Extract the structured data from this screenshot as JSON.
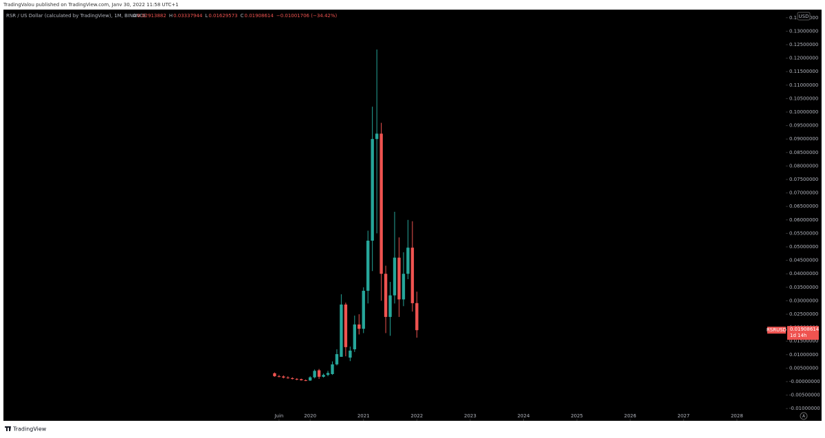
{
  "publisher": "TradingValou published on TradingView.com, Janv 30, 2022 11:58 UTC+1",
  "footer_brand": "TradingView",
  "chart_data": {
    "type": "candlestick",
    "title": "RSR / US Dollar (calculated by TradingView), 1M, BINANCE",
    "ohlc_letters": [
      "O",
      "H",
      "L",
      "C"
    ],
    "change": "−0.01001706 (−34.42%)",
    "symbol": "RSRUSD",
    "countdown": "1d 14h",
    "currency": "USD",
    "up_color": "#26a69a",
    "down_color": "#ef5350",
    "x": [
      "2019-05",
      "2019-06",
      "2019-07",
      "2019-08",
      "2019-09",
      "2019-10",
      "2019-11",
      "2019-12",
      "2020-01",
      "2020-02",
      "2020-03",
      "2020-04",
      "2020-05",
      "2020-06",
      "2020-07",
      "2020-08",
      "2020-09",
      "2020-10",
      "2020-11",
      "2020-12",
      "2021-01",
      "2021-02",
      "2021-03",
      "2021-04",
      "2021-05",
      "2021-06",
      "2021-07",
      "2021-08",
      "2021-09",
      "2021-10",
      "2021-11",
      "2021-12",
      "2022-01"
    ],
    "open": [
      0.0031,
      0.002,
      0.0019,
      0.0015,
      0.0013,
      0.001,
      0.0009,
      0.0005,
      0.0004,
      0.0016,
      0.0042,
      0.0018,
      0.0025,
      0.0028,
      0.0064,
      0.0092,
      0.0286,
      0.0089,
      0.012,
      0.0212,
      0.0196,
      0.0337,
      0.0523,
      0.09,
      0.092,
      0.04,
      0.024,
      0.032,
      0.046,
      0.0305,
      0.04,
      0.0497,
      0.02913882
    ],
    "high": [
      0.0034,
      0.0025,
      0.0023,
      0.002,
      0.0016,
      0.0013,
      0.0011,
      0.0008,
      0.002,
      0.0045,
      0.0047,
      0.003,
      0.004,
      0.0075,
      0.012,
      0.0324,
      0.0293,
      0.013,
      0.0245,
      0.025,
      0.035,
      0.056,
      0.102,
      0.1232,
      0.096,
      0.043,
      0.037,
      0.063,
      0.0535,
      0.048,
      0.06,
      0.0595,
      0.03337944
    ],
    "low": [
      0.0018,
      0.0016,
      0.0012,
      0.0011,
      0.0008,
      0.0005,
      0.0004,
      0.0002,
      0.0003,
      0.0012,
      0.001,
      0.0015,
      0.002,
      0.0025,
      0.006,
      0.0092,
      0.0094,
      0.0076,
      0.011,
      0.0175,
      0.018,
      0.029,
      0.041,
      0.055,
      0.03,
      0.018,
      0.017,
      0.029,
      0.024,
      0.028,
      0.038,
      0.026,
      0.01629573
    ],
    "close": [
      0.002,
      0.0019,
      0.0015,
      0.0013,
      0.001,
      0.0009,
      0.0005,
      0.0004,
      0.0016,
      0.004,
      0.0018,
      0.0025,
      0.0032,
      0.0064,
      0.0102,
      0.0286,
      0.0128,
      0.0115,
      0.0212,
      0.0196,
      0.0337,
      0.0523,
      0.09,
      0.092,
      0.04,
      0.024,
      0.032,
      0.046,
      0.0305,
      0.04,
      0.0497,
      0.0291032,
      0.01908614
    ],
    "xlim": [
      "2014-04",
      "2028-12"
    ],
    "xticks": [
      {
        "value": "2019-06",
        "label": "Juin"
      },
      {
        "value": "2020-01",
        "label": "2020"
      },
      {
        "value": "2021-01",
        "label": "2021"
      },
      {
        "value": "2022-01",
        "label": "2022"
      },
      {
        "value": "2023-01",
        "label": "2023"
      },
      {
        "value": "2024-01",
        "label": "2024"
      },
      {
        "value": "2025-01",
        "label": "2025"
      },
      {
        "value": "2026-01",
        "label": "2026"
      },
      {
        "value": "2027-01",
        "label": "2027"
      },
      {
        "value": "2028-01",
        "label": "2028"
      }
    ],
    "ylim": [
      -0.01454,
      0.13801
    ],
    "yticks": [
      {
        "value": -0.01,
        "label": "-0.01000000"
      },
      {
        "value": -0.005,
        "label": "-0.00500000"
      },
      {
        "value": 0,
        "label": "-0.00000000"
      },
      {
        "value": 0.005,
        "label": "0.00500000"
      },
      {
        "value": 0.01,
        "label": "0.01000000"
      },
      {
        "value": 0.015,
        "label": "0.01500000"
      },
      {
        "value": 0.02,
        "label": "0.02000000"
      },
      {
        "value": 0.025,
        "label": "0.02500000"
      },
      {
        "value": 0.03,
        "label": "0.03000000"
      },
      {
        "value": 0.035,
        "label": "0.03500000"
      },
      {
        "value": 0.04,
        "label": "0.04000000"
      },
      {
        "value": 0.045,
        "label": "0.04500000"
      },
      {
        "value": 0.05,
        "label": "0.05000000"
      },
      {
        "value": 0.055,
        "label": "0.05500000"
      },
      {
        "value": 0.06,
        "label": "0.06000000"
      },
      {
        "value": 0.065,
        "label": "0.06500000"
      },
      {
        "value": 0.07,
        "label": "0.07000000"
      },
      {
        "value": 0.075,
        "label": "0.07500000"
      },
      {
        "value": 0.08,
        "label": "0.08000000"
      },
      {
        "value": 0.085,
        "label": "0.08500000"
      },
      {
        "value": 0.09,
        "label": "0.09000000"
      },
      {
        "value": 0.095,
        "label": "0.09500000"
      },
      {
        "value": 0.1,
        "label": "0.10000000"
      },
      {
        "value": 0.105,
        "label": "0.10500000"
      },
      {
        "value": 0.11,
        "label": "0.11000000"
      },
      {
        "value": 0.115,
        "label": "0.11500000"
      },
      {
        "value": 0.12,
        "label": "0.12000000"
      },
      {
        "value": 0.125,
        "label": "0.12500000"
      },
      {
        "value": 0.13,
        "label": "0.13000000"
      },
      {
        "value": 0.135,
        "label": "0.13500000"
      }
    ]
  }
}
